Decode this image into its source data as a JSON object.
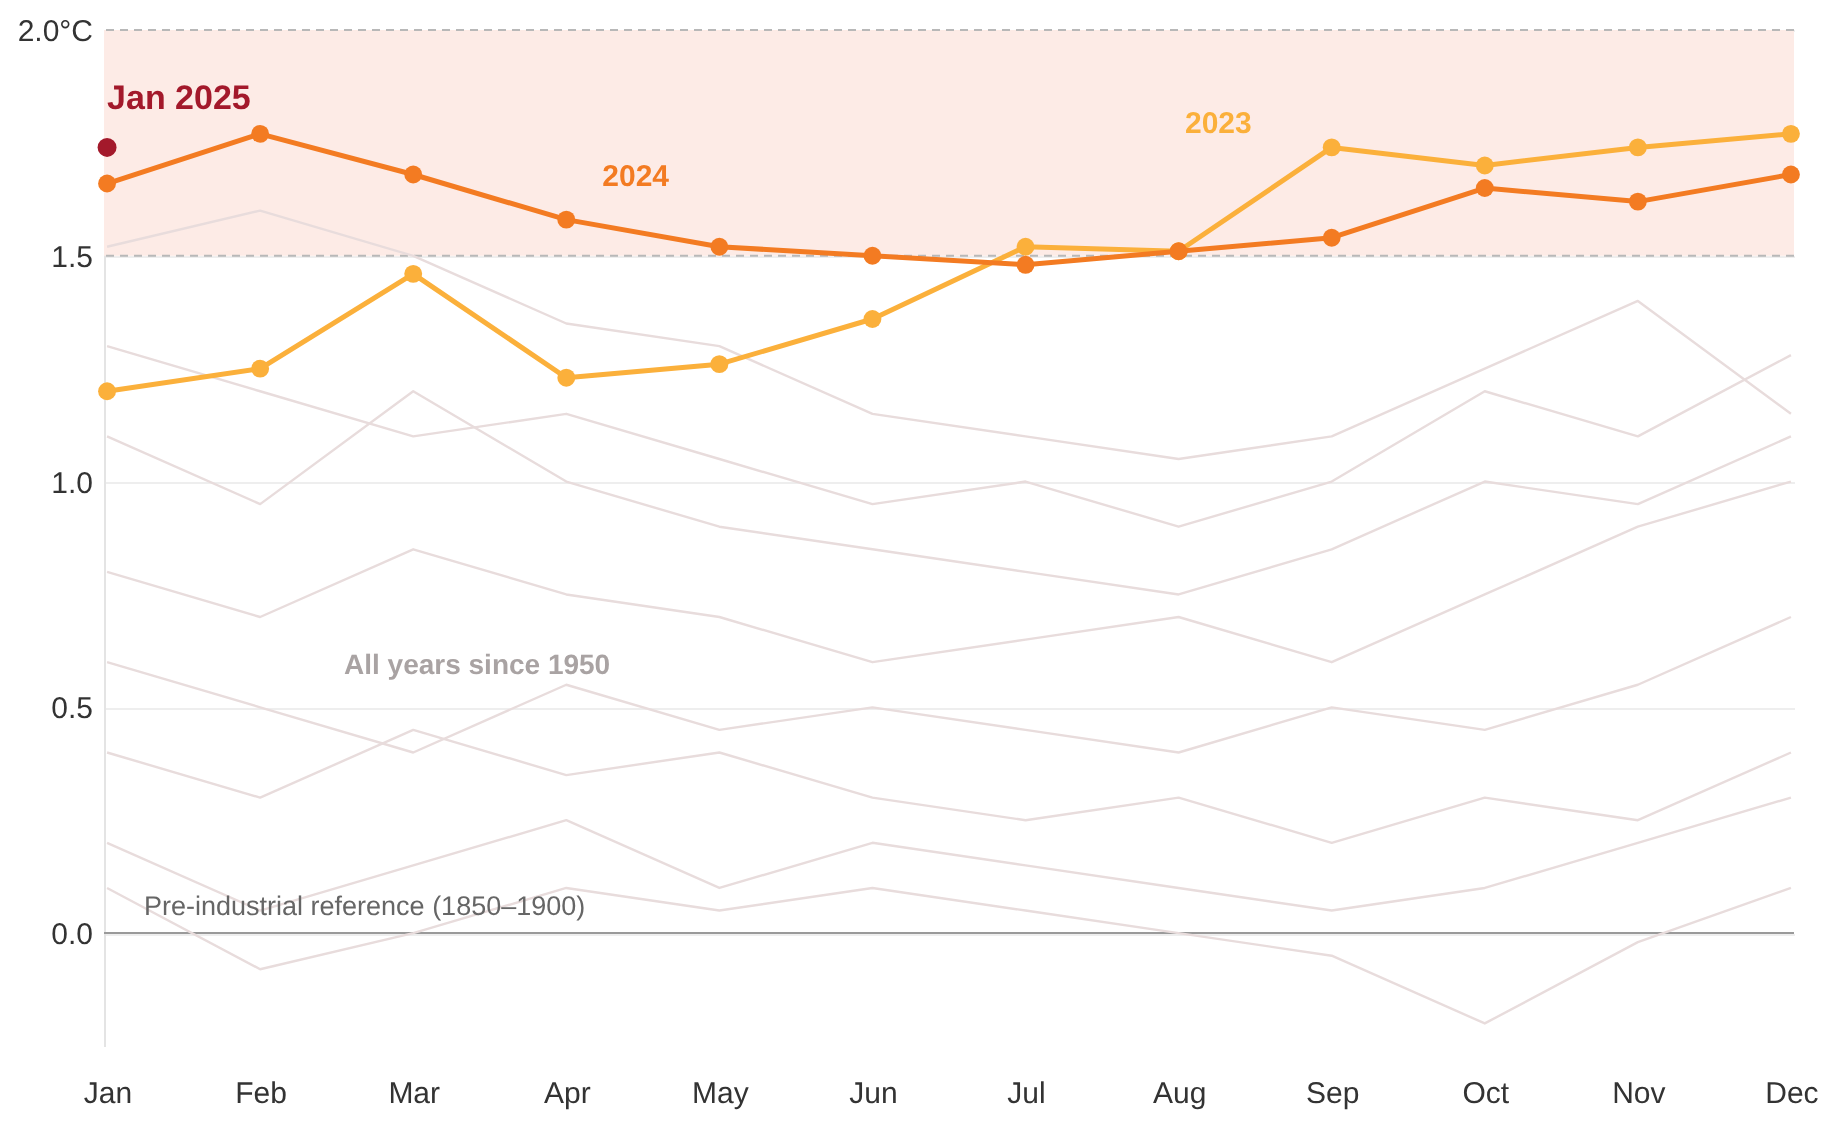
{
  "chart_data": {
    "type": "line",
    "categories": [
      "Jan",
      "Feb",
      "Mar",
      "Apr",
      "May",
      "Jun",
      "Jul",
      "Aug",
      "Sep",
      "Oct",
      "Nov",
      "Dec"
    ],
    "ylim": [
      -0.25,
      2.0
    ],
    "yticks": [
      {
        "value": 0,
        "label": "0.0"
      },
      {
        "value": 0.5,
        "label": "0.5"
      },
      {
        "value": 1,
        "label": "1.0"
      },
      {
        "value": 1.5,
        "label": "1.5"
      },
      {
        "value": 2,
        "label": "2.0°C"
      }
    ],
    "grid": "y",
    "series": [
      {
        "color": "#e8dcdc",
        "marker": "none",
        "values": [
          1.52,
          1.6,
          1.5,
          1.35,
          1.3,
          1.15,
          1.1,
          1.05,
          1.1,
          1.25,
          1.4,
          1.15
        ]
      },
      {
        "color": "#e8dcdc",
        "marker": "none",
        "values": [
          1.3,
          1.2,
          1.1,
          1.15,
          1.05,
          0.95,
          1.0,
          0.9,
          1.0,
          1.2,
          1.1,
          1.28
        ]
      },
      {
        "color": "#e8dcdc",
        "marker": "none",
        "values": [
          1.1,
          0.95,
          1.2,
          1.0,
          0.9,
          0.85,
          0.8,
          0.75,
          0.85,
          1.0,
          0.95,
          1.1
        ]
      },
      {
        "color": "#e8dcdc",
        "marker": "none",
        "values": [
          0.8,
          0.7,
          0.85,
          0.75,
          0.7,
          0.6,
          0.65,
          0.7,
          0.6,
          0.75,
          0.9,
          1.0
        ]
      },
      {
        "color": "#e8dcdc",
        "marker": "none",
        "values": [
          0.6,
          0.5,
          0.4,
          0.55,
          0.45,
          0.5,
          0.45,
          0.4,
          0.5,
          0.45,
          0.55,
          0.7
        ]
      },
      {
        "color": "#e8dcdc",
        "marker": "none",
        "values": [
          0.4,
          0.3,
          0.45,
          0.35,
          0.4,
          0.3,
          0.25,
          0.3,
          0.2,
          0.3,
          0.25,
          0.4
        ]
      },
      {
        "color": "#e8dcdc",
        "marker": "none",
        "values": [
          0.2,
          0.05,
          0.15,
          0.25,
          0.1,
          0.2,
          0.15,
          0.1,
          0.05,
          0.1,
          0.2,
          0.3
        ]
      },
      {
        "color": "#e8dcdc",
        "marker": "none",
        "values": [
          0.1,
          -0.08,
          0.0,
          0.1,
          0.05,
          0.1,
          0.05,
          0.0,
          -0.05,
          -0.2,
          -0.02,
          0.1
        ]
      },
      {
        "name": "2023",
        "color": "#fbb03b",
        "marker": "circle",
        "values": [
          1.2,
          1.25,
          1.46,
          1.23,
          1.26,
          1.36,
          1.52,
          1.51,
          1.74,
          1.7,
          1.74,
          1.77
        ]
      },
      {
        "name": "2024",
        "color": "#f37b22",
        "marker": "circle",
        "values": [
          1.66,
          1.77,
          1.68,
          1.58,
          1.52,
          1.5,
          1.48,
          1.51,
          1.54,
          1.65,
          1.62,
          1.68
        ]
      },
      {
        "name": "Jan 2025",
        "type": "scatter",
        "color": "#a3192b",
        "values": [
          1.74,
          null,
          null,
          null,
          null,
          null,
          null,
          null,
          null,
          null,
          null,
          null
        ]
      }
    ],
    "bands": [
      {
        "axis": "y",
        "from": 1.5,
        "to": 2.0,
        "color": "#fdebe6"
      }
    ],
    "ref_lines": [
      {
        "axis": "y",
        "value": 1.5,
        "line_style": "dashed",
        "color": "#b8b8b8"
      },
      {
        "axis": "y",
        "value": 2.0,
        "line_style": "dashed",
        "color": "#b8b8b8"
      },
      {
        "axis": "y",
        "value": 0,
        "line_style": "solid",
        "color": "#9a9a9a",
        "label": "Pre-industrial reference (1850–1900)"
      }
    ],
    "annotations": [
      "All years since 1950"
    ]
  }
}
